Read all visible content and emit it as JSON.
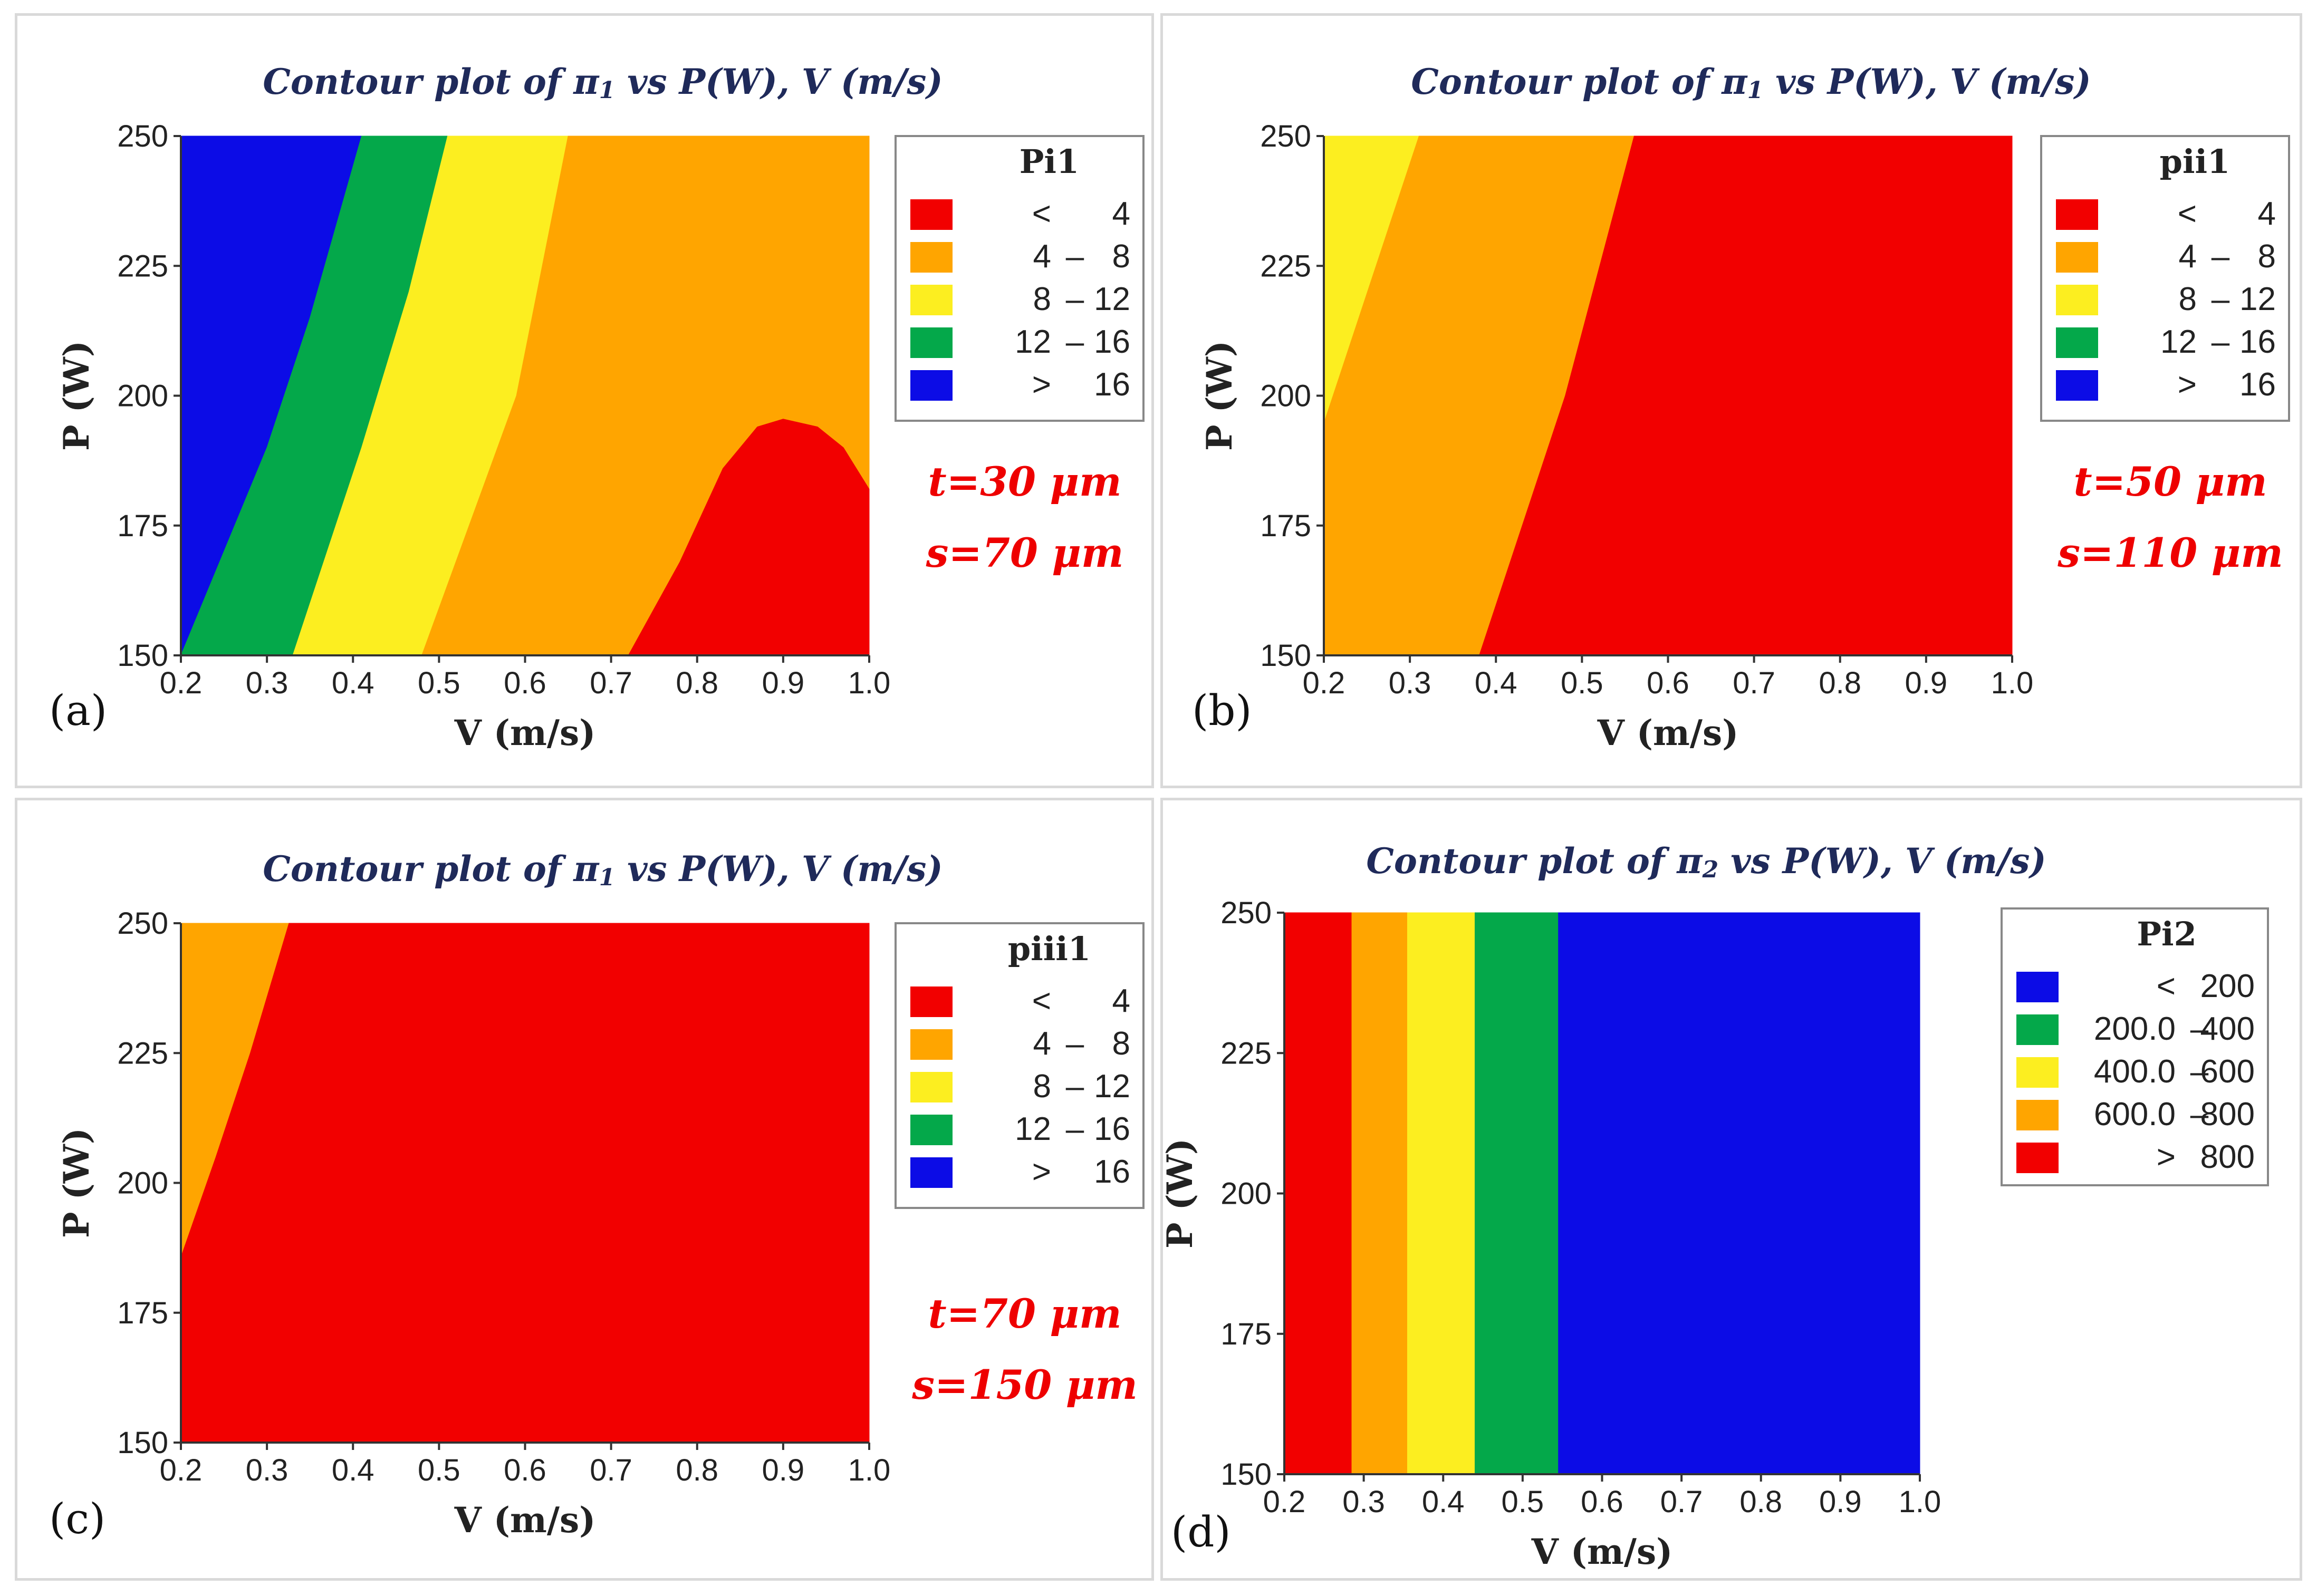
{
  "colors": {
    "red": "#f20000",
    "orange": "#ffa500",
    "yellow": "#fcee20",
    "green": "#04a84a",
    "blue": "#0c0ce6"
  },
  "chart_data": [
    {
      "panel": "(a)",
      "type": "heatmap",
      "title_prefix": "Contour plot of π",
      "title_sub": "1",
      "title_suffix": " vs P(W), V (m/s)",
      "xlabel": "V (m/s)",
      "ylabel": "P (W)",
      "xlim": [
        0.2,
        1.0
      ],
      "ylim": [
        150,
        250
      ],
      "xticks": [
        "0.2",
        "0.3",
        "0.4",
        "0.5",
        "0.6",
        "0.7",
        "0.8",
        "0.9",
        "1.0"
      ],
      "yticks": [
        "150",
        "175",
        "200",
        "225",
        "250"
      ],
      "legend": {
        "title": "Pi1",
        "entries": [
          {
            "label": "<",
            "value": "4",
            "color": "red"
          },
          {
            "label": "4",
            "sep": "–",
            "value": "8",
            "color": "orange"
          },
          {
            "label": "8",
            "sep": "–",
            "value": "12",
            "color": "yellow"
          },
          {
            "label": "12",
            "sep": "–",
            "value": "16",
            "color": "green"
          },
          {
            "label": ">",
            "value": "16",
            "color": "blue"
          }
        ]
      },
      "notes": [
        "t=30 μm",
        "s=70 μm"
      ],
      "regions": [
        {
          "color": "blue",
          "polygon": [
            [
              0.2,
              150
            ],
            [
              0.2,
              250
            ],
            [
              0.41,
              250
            ],
            [
              0.35,
              215
            ],
            [
              0.3,
              190
            ],
            [
              0.2,
              150
            ]
          ]
        },
        {
          "color": "green",
          "polygon": [
            [
              0.2,
              150
            ],
            [
              0.3,
              190
            ],
            [
              0.35,
              215
            ],
            [
              0.41,
              250
            ],
            [
              0.51,
              250
            ],
            [
              0.465,
              220
            ],
            [
              0.41,
              190
            ],
            [
              0.33,
              150
            ]
          ]
        },
        {
          "color": "yellow",
          "polygon": [
            [
              0.33,
              150
            ],
            [
              0.41,
              190
            ],
            [
              0.465,
              220
            ],
            [
              0.51,
              250
            ],
            [
              0.65,
              250
            ],
            [
              0.59,
              200
            ],
            [
              0.48,
              150
            ]
          ]
        },
        {
          "color": "orange",
          "polygon": [
            [
              0.48,
              150
            ],
            [
              0.59,
              200
            ],
            [
              0.65,
              250
            ],
            [
              1.0,
              250
            ],
            [
              1.0,
              150
            ]
          ]
        },
        {
          "color": "red",
          "polygon": [
            [
              0.72,
              150
            ],
            [
              0.78,
              168
            ],
            [
              0.83,
              186
            ],
            [
              0.87,
              194
            ],
            [
              0.9,
              195.5
            ],
            [
              0.94,
              194
            ],
            [
              0.97,
              190
            ],
            [
              1.0,
              182
            ],
            [
              1.0,
              150
            ]
          ]
        }
      ]
    },
    {
      "panel": "(b)",
      "type": "heatmap",
      "title_prefix": "Contour plot of π",
      "title_sub": "1",
      "title_suffix": " vs P(W), V (m/s)",
      "xlabel": "V (m/s)",
      "ylabel": "P (W)",
      "xlim": [
        0.2,
        1.0
      ],
      "ylim": [
        150,
        250
      ],
      "xticks": [
        "0.2",
        "0.3",
        "0.4",
        "0.5",
        "0.6",
        "0.7",
        "0.8",
        "0.9",
        "1.0"
      ],
      "yticks": [
        "150",
        "175",
        "200",
        "225",
        "250"
      ],
      "legend": {
        "title": "pii1",
        "entries": [
          {
            "label": "<",
            "value": "4",
            "color": "red"
          },
          {
            "label": "4",
            "sep": "–",
            "value": "8",
            "color": "orange"
          },
          {
            "label": "8",
            "sep": "–",
            "value": "12",
            "color": "yellow"
          },
          {
            "label": "12",
            "sep": "–",
            "value": "16",
            "color": "green"
          },
          {
            "label": ">",
            "value": "16",
            "color": "blue"
          }
        ]
      },
      "notes": [
        "t=50 μm",
        "s=110 μm"
      ],
      "regions": [
        {
          "color": "red",
          "polygon": [
            [
              0.2,
              150
            ],
            [
              0.2,
              250
            ],
            [
              1.0,
              250
            ],
            [
              1.0,
              150
            ]
          ]
        },
        {
          "color": "orange",
          "polygon": [
            [
              0.2,
              150
            ],
            [
              0.2,
              250
            ],
            [
              0.56,
              250
            ],
            [
              0.48,
              200
            ],
            [
              0.38,
              150
            ]
          ]
        },
        {
          "color": "yellow",
          "polygon": [
            [
              0.2,
              195
            ],
            [
              0.2,
              250
            ],
            [
              0.31,
              250
            ],
            [
              0.26,
              225
            ]
          ]
        }
      ]
    },
    {
      "panel": "(c)",
      "type": "heatmap",
      "title_prefix": "Contour plot of π",
      "title_sub": "1",
      "title_suffix": " vs P(W), V (m/s)",
      "xlabel": "V (m/s)",
      "ylabel": "P (W)",
      "xlim": [
        0.2,
        1.0
      ],
      "ylim": [
        150,
        250
      ],
      "xticks": [
        "0.2",
        "0.3",
        "0.4",
        "0.5",
        "0.6",
        "0.7",
        "0.8",
        "0.9",
        "1.0"
      ],
      "yticks": [
        "150",
        "175",
        "200",
        "225",
        "250"
      ],
      "legend": {
        "title": "piii1",
        "entries": [
          {
            "label": "<",
            "value": "4",
            "color": "red"
          },
          {
            "label": "4",
            "sep": "–",
            "value": "8",
            "color": "orange"
          },
          {
            "label": "8",
            "sep": "–",
            "value": "12",
            "color": "yellow"
          },
          {
            "label": "12",
            "sep": "–",
            "value": "16",
            "color": "green"
          },
          {
            "label": ">",
            "value": "16",
            "color": "blue"
          }
        ]
      },
      "notes": [
        "t=70 μm",
        "s=150 μm"
      ],
      "regions": [
        {
          "color": "red",
          "polygon": [
            [
              0.2,
              150
            ],
            [
              0.2,
              250
            ],
            [
              1.0,
              250
            ],
            [
              1.0,
              150
            ]
          ]
        },
        {
          "color": "orange",
          "polygon": [
            [
              0.2,
              186
            ],
            [
              0.2,
              250
            ],
            [
              0.325,
              250
            ],
            [
              0.28,
              225
            ],
            [
              0.24,
              205
            ]
          ]
        }
      ]
    },
    {
      "panel": "(d)",
      "type": "heatmap",
      "title_prefix": "Contour plot of π",
      "title_sub": "2",
      "title_suffix": " vs P(W), V (m/s)",
      "xlabel": "V (m/s)",
      "ylabel": "P (W)",
      "xlim": [
        0.2,
        1.0
      ],
      "ylim": [
        150,
        250
      ],
      "xticks": [
        "0.2",
        "0.3",
        "0.4",
        "0.5",
        "0.6",
        "0.7",
        "0.8",
        "0.9",
        "1.0"
      ],
      "yticks": [
        "150",
        "175",
        "200",
        "225",
        "250"
      ],
      "legend": {
        "title": "Pi2",
        "entries": [
          {
            "label": "<",
            "value": "200",
            "color": "blue"
          },
          {
            "label": "200.0",
            "sep": "–",
            "value": "400",
            "color": "green"
          },
          {
            "label": "400.0",
            "sep": "–",
            "value": "600",
            "color": "yellow"
          },
          {
            "label": "600.0",
            "sep": "–",
            "value": "800",
            "color": "orange"
          },
          {
            "label": ">",
            "value": "800",
            "color": "red"
          }
        ]
      },
      "notes": [],
      "regions": [
        {
          "color": "red",
          "polygon": [
            [
              0.2,
              150
            ],
            [
              0.2,
              250
            ],
            [
              0.285,
              250
            ],
            [
              0.285,
              150
            ]
          ]
        },
        {
          "color": "orange",
          "polygon": [
            [
              0.285,
              150
            ],
            [
              0.285,
              250
            ],
            [
              0.355,
              250
            ],
            [
              0.355,
              150
            ]
          ]
        },
        {
          "color": "yellow",
          "polygon": [
            [
              0.355,
              150
            ],
            [
              0.355,
              250
            ],
            [
              0.44,
              250
            ],
            [
              0.44,
              150
            ]
          ]
        },
        {
          "color": "green",
          "polygon": [
            [
              0.44,
              150
            ],
            [
              0.44,
              250
            ],
            [
              0.545,
              250
            ],
            [
              0.545,
              150
            ]
          ]
        },
        {
          "color": "blue",
          "polygon": [
            [
              0.545,
              150
            ],
            [
              0.545,
              250
            ],
            [
              1.0,
              250
            ],
            [
              1.0,
              150
            ]
          ]
        }
      ]
    }
  ]
}
